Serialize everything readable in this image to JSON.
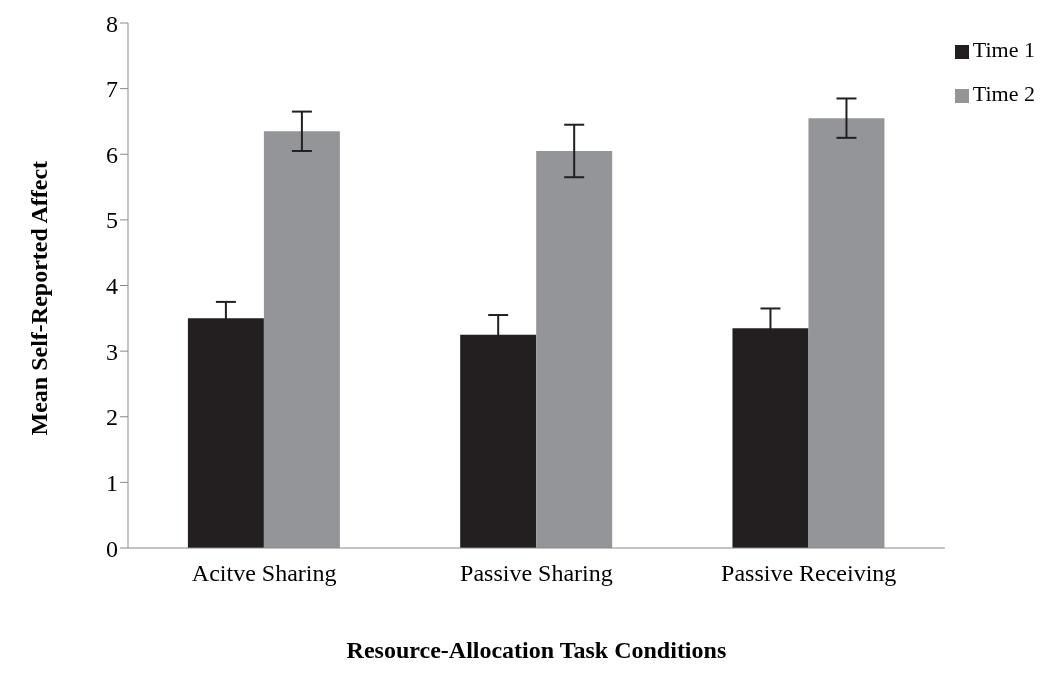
{
  "chart_data": {
    "type": "bar",
    "xlabel": "Resource-Allocation Task Conditions",
    "ylabel": "Mean Self-Reported Affect",
    "categories": [
      "Acitve Sharing",
      "Passive Sharing",
      "Passive Receiving"
    ],
    "series": [
      {
        "name": "Time 1",
        "color": "#231f20",
        "values": [
          3.5,
          3.25,
          3.35
        ],
        "errors": [
          0.25,
          0.3,
          0.3
        ]
      },
      {
        "name": "Time 2",
        "color": "#939598",
        "values": [
          6.35,
          6.05,
          6.55
        ],
        "errors": [
          0.3,
          0.4,
          0.3
        ]
      }
    ],
    "ylim": [
      0,
      8
    ],
    "yticks": [
      0,
      1,
      2,
      3,
      4,
      5,
      6,
      7,
      8
    ],
    "grid": false,
    "legend": "top right"
  }
}
